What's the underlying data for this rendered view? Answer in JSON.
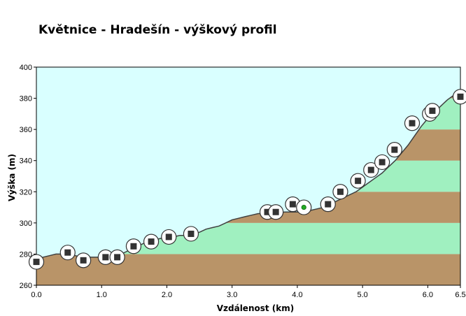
{
  "chart_data": {
    "type": "area",
    "title": "Květnice - Hradešín - výškový profil",
    "xlabel": "Vzdálenost  (km)",
    "ylabel": "Výška (m)",
    "xlim": [
      0,
      6.5
    ],
    "ylim": [
      260,
      400
    ],
    "x_ticks": [
      0.0,
      1.0,
      2.0,
      3.0,
      4.0,
      5.0,
      6.0,
      6.5
    ],
    "x_tick_labels": [
      "0.0",
      "1.0",
      "2.0",
      "3.0",
      "4.0",
      "5.0",
      "6.0",
      "6.5"
    ],
    "y_ticks": [
      260,
      280,
      300,
      320,
      340,
      360,
      380,
      400
    ],
    "y_tick_labels": [
      "260",
      "280",
      "300",
      "320",
      "340",
      "360",
      "380",
      "400"
    ],
    "grid": false,
    "colors": {
      "sky": "#d9ffff",
      "band_brown": "#b99468",
      "band_green": "#a0f0c0",
      "outline": "#404040",
      "marker_square": "#333333",
      "marker_green": "#22aa22"
    },
    "profile": {
      "x": [
        0.0,
        0.05,
        0.1,
        0.2,
        0.3,
        0.4,
        0.5,
        0.6,
        0.7,
        0.8,
        0.9,
        1.0,
        1.1,
        1.2,
        1.3,
        1.4,
        1.5,
        1.6,
        1.7,
        1.8,
        1.9,
        2.0,
        2.1,
        2.2,
        2.3,
        2.4,
        2.5,
        2.6,
        2.7,
        2.8,
        2.9,
        3.0,
        3.1,
        3.2,
        3.3,
        3.4,
        3.5,
        3.6,
        3.7,
        3.8,
        3.9,
        4.0,
        4.1,
        4.2,
        4.3,
        4.4,
        4.5,
        4.6,
        4.7,
        4.8,
        4.9,
        5.0,
        5.1,
        5.2,
        5.3,
        5.4,
        5.5,
        5.6,
        5.7,
        5.8,
        5.9,
        6.0,
        6.1,
        6.2,
        6.3,
        6.4,
        6.5
      ],
      "y": [
        275,
        277,
        278,
        279,
        280,
        280,
        280,
        279,
        278,
        278,
        278,
        278,
        278,
        279,
        280,
        282,
        284,
        286,
        288,
        289,
        290,
        291,
        291,
        292,
        292,
        293,
        294,
        296,
        297,
        298,
        300,
        302,
        303,
        304,
        305,
        306,
        306,
        306,
        306,
        307,
        307,
        307,
        307,
        308,
        309,
        310,
        312,
        314,
        316,
        318,
        320,
        323,
        326,
        329,
        332,
        336,
        340,
        345,
        350,
        356,
        362,
        367,
        371,
        375,
        379,
        382,
        383
      ]
    },
    "markers": [
      {
        "x": 0.0,
        "y": 275,
        "type": "square"
      },
      {
        "x": 0.48,
        "y": 281,
        "type": "square"
      },
      {
        "x": 0.72,
        "y": 276,
        "type": "square"
      },
      {
        "x": 1.06,
        "y": 278,
        "type": "square"
      },
      {
        "x": 1.24,
        "y": 278,
        "type": "square"
      },
      {
        "x": 1.49,
        "y": 285,
        "type": "square"
      },
      {
        "x": 1.76,
        "y": 288,
        "type": "square"
      },
      {
        "x": 2.03,
        "y": 291,
        "type": "square"
      },
      {
        "x": 2.37,
        "y": 293,
        "type": "square"
      },
      {
        "x": 3.54,
        "y": 307,
        "type": "square"
      },
      {
        "x": 3.67,
        "y": 307,
        "type": "square"
      },
      {
        "x": 3.93,
        "y": 312,
        "type": "square"
      },
      {
        "x": 4.1,
        "y": 310,
        "type": "green"
      },
      {
        "x": 4.47,
        "y": 312,
        "type": "square"
      },
      {
        "x": 4.66,
        "y": 320,
        "type": "square"
      },
      {
        "x": 4.93,
        "y": 327,
        "type": "square"
      },
      {
        "x": 5.13,
        "y": 334,
        "type": "square"
      },
      {
        "x": 5.3,
        "y": 339,
        "type": "square"
      },
      {
        "x": 5.49,
        "y": 347,
        "type": "square"
      },
      {
        "x": 5.76,
        "y": 364,
        "type": "square"
      },
      {
        "x": 6.03,
        "y": 370,
        "type": "square"
      },
      {
        "x": 6.07,
        "y": 372,
        "type": "square"
      },
      {
        "x": 6.51,
        "y": 381,
        "type": "square"
      }
    ]
  }
}
